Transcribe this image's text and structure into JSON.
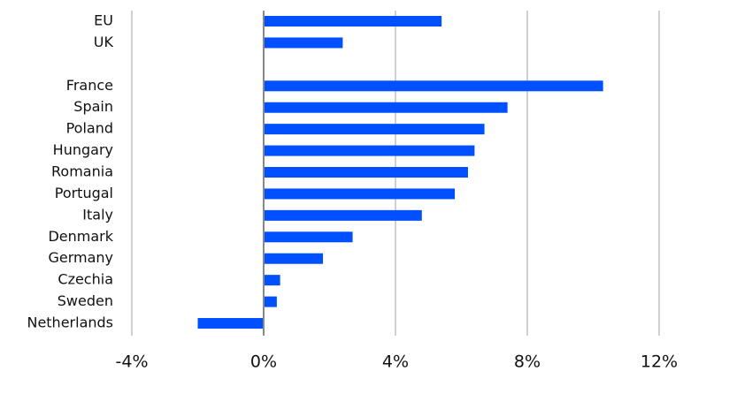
{
  "chart_data": {
    "type": "bar",
    "orientation": "horizontal",
    "categories": [
      "EU",
      "UK",
      null,
      "France",
      "Spain",
      "Poland",
      "Hungary",
      "Romania",
      "Portugal",
      "Italy",
      "Denmark",
      "Germany",
      "Czechia",
      "Sweden",
      "Netherlands"
    ],
    "values": [
      5.4,
      2.4,
      null,
      10.3,
      7.4,
      6.7,
      6.4,
      6.2,
      5.8,
      4.8,
      2.7,
      1.8,
      0.5,
      0.4,
      -2.0
    ],
    "color": "#0050ff",
    "xlim": [
      -4,
      12
    ],
    "xticks": [
      {
        "value": -4,
        "label": "-4%"
      },
      {
        "value": 0,
        "label": "0%"
      },
      {
        "value": 4,
        "label": "4%"
      },
      {
        "value": 8,
        "label": "8%"
      },
      {
        "value": 12,
        "label": "12%"
      }
    ],
    "grid": true
  }
}
